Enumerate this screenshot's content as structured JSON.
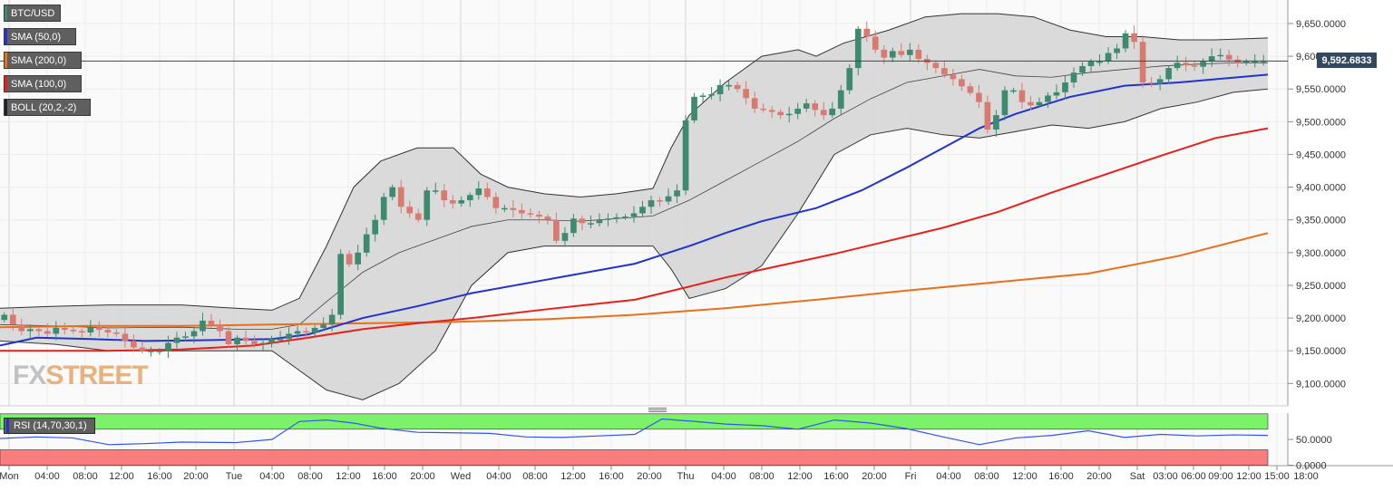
{
  "legend": {
    "pair": "BTC/USD",
    "sma50": "SMA (50,0)",
    "sma200": "SMA (200,0)",
    "sma100": "SMA (100,0)",
    "boll": "BOLL (20,2,-2)",
    "rsi": "RSI (14,70,30,1)"
  },
  "colors": {
    "bull": "#3d8a6e",
    "bear": "#d87a70",
    "sma50": "#2233cc",
    "sma100": "#e8201a",
    "sma200": "#e8701a",
    "boll_fill": "#d6d6d6",
    "rsi_line": "#3355ee",
    "rsi_over": "#7cf26a",
    "rsi_under": "#fa7d7d"
  },
  "current_price": "9,592.6833",
  "watermark": {
    "fx": "FX",
    "street": "STREET"
  },
  "chart_data": {
    "type": "candlestick",
    "x_labels": [
      "Mon",
      "04:00",
      "08:00",
      "12:00",
      "16:00",
      "20:00",
      "Tue",
      "04:00",
      "08:00",
      "12:00",
      "16:00",
      "20:00",
      "Wed",
      "04:00",
      "08:00",
      "12:00",
      "16:00",
      "20:00",
      "Thu",
      "04:00",
      "08:00",
      "12:00",
      "16:00",
      "20:00",
      "Fri",
      "04:00",
      "08:00",
      "12:00",
      "16:00",
      "20:00",
      "Sat",
      "03:00",
      "06:00",
      "09:00",
      "12:00",
      "15:00",
      "18:00"
    ],
    "y_ticks": [
      "9,650.0000",
      "9,600.0000",
      "9,550.0000",
      "9,500.0000",
      "9,450.0000",
      "9,400.0000",
      "9,350.0000",
      "9,300.0000",
      "9,250.0000",
      "9,200.0000",
      "9,150.0000",
      "9,100.0000"
    ],
    "ylim": [
      9070,
      9680
    ],
    "rsi_ticks": [
      "50.0000",
      "0.0000"
    ],
    "rsi_range": [
      0,
      100
    ],
    "close_key": [
      9205,
      9190,
      9180,
      9183,
      9180,
      9176,
      9185,
      9182,
      9180,
      9178,
      9186,
      9182,
      9178,
      9176,
      9165,
      9155,
      9150,
      9150,
      9150,
      9162,
      9170,
      9172,
      9180,
      9196,
      9190,
      9180,
      9160,
      9170,
      9165,
      9160,
      9162,
      9168,
      9168,
      9176,
      9180,
      9178,
      9185,
      9190,
      9205,
      9298,
      9282,
      9300,
      9328,
      9350,
      9385,
      9400,
      9370,
      9360,
      9350,
      9395,
      9395,
      9380,
      9375,
      9380,
      9388,
      9398,
      9385,
      9368,
      9368,
      9365,
      9360,
      9358,
      9355,
      9350,
      9318,
      9330,
      9352,
      9345,
      9345,
      9350,
      9352,
      9354,
      9355,
      9360,
      9370,
      9380,
      9378,
      9386,
      9395,
      9502,
      9538,
      9540,
      9542,
      9556,
      9556,
      9550,
      9536,
      9520,
      9518,
      9515,
      9510,
      9512,
      9520,
      9528,
      9518,
      9510,
      9520,
      9548,
      9582,
      9642,
      9630,
      9610,
      9598,
      9608,
      9602,
      9610,
      9596,
      9590,
      9582,
      9572,
      9565,
      9554,
      9544,
      9530,
      9488,
      9510,
      9548,
      9548,
      9530,
      9525,
      9530,
      9540,
      9545,
      9560,
      9575,
      9585,
      9592,
      9592,
      9605,
      9612,
      9635,
      9622,
      9560,
      9558,
      9565,
      9582,
      9590,
      9586,
      9584,
      9592,
      9600,
      9602,
      9595,
      9590,
      9592,
      9592,
      9593
    ],
    "sma50": [
      [
        0,
        9158
      ],
      [
        40,
        9170
      ],
      [
        100,
        9168
      ],
      [
        160,
        9165
      ],
      [
        220,
        9166
      ],
      [
        300,
        9168
      ],
      [
        340,
        9175
      ],
      [
        400,
        9200
      ],
      [
        460,
        9218
      ],
      [
        520,
        9238
      ],
      [
        600,
        9258
      ],
      [
        700,
        9283
      ],
      [
        760,
        9310
      ],
      [
        800,
        9330
      ],
      [
        840,
        9348
      ],
      [
        900,
        9368
      ],
      [
        950,
        9395
      ],
      [
        1000,
        9430
      ],
      [
        1040,
        9460
      ],
      [
        1080,
        9490
      ],
      [
        1120,
        9512
      ],
      [
        1180,
        9538
      ],
      [
        1240,
        9555
      ],
      [
        1300,
        9560
      ],
      [
        1398,
        9572
      ]
    ],
    "sma100": [
      [
        0,
        9150
      ],
      [
        60,
        9150
      ],
      [
        120,
        9150
      ],
      [
        200,
        9152
      ],
      [
        280,
        9158
      ],
      [
        340,
        9170
      ],
      [
        400,
        9183
      ],
      [
        460,
        9192
      ],
      [
        520,
        9200
      ],
      [
        600,
        9213
      ],
      [
        700,
        9228
      ],
      [
        760,
        9248
      ],
      [
        800,
        9262
      ],
      [
        860,
        9280
      ],
      [
        920,
        9298
      ],
      [
        980,
        9318
      ],
      [
        1040,
        9338
      ],
      [
        1100,
        9362
      ],
      [
        1160,
        9392
      ],
      [
        1220,
        9420
      ],
      [
        1280,
        9448
      ],
      [
        1340,
        9475
      ],
      [
        1398,
        9490
      ]
    ],
    "sma200": [
      [
        0,
        9186
      ],
      [
        100,
        9188
      ],
      [
        200,
        9188
      ],
      [
        300,
        9190
      ],
      [
        400,
        9192
      ],
      [
        500,
        9194
      ],
      [
        600,
        9198
      ],
      [
        700,
        9205
      ],
      [
        800,
        9215
      ],
      [
        900,
        9228
      ],
      [
        1000,
        9242
      ],
      [
        1100,
        9255
      ],
      [
        1200,
        9268
      ],
      [
        1300,
        9295
      ],
      [
        1398,
        9330
      ]
    ],
    "boll_upper": [
      [
        0,
        9215
      ],
      [
        60,
        9218
      ],
      [
        120,
        9220
      ],
      [
        200,
        9220
      ],
      [
        260,
        9215
      ],
      [
        300,
        9212
      ],
      [
        330,
        9230
      ],
      [
        360,
        9310
      ],
      [
        390,
        9400
      ],
      [
        420,
        9440
      ],
      [
        460,
        9460
      ],
      [
        500,
        9460
      ],
      [
        530,
        9420
      ],
      [
        560,
        9400
      ],
      [
        600,
        9390
      ],
      [
        640,
        9385
      ],
      [
        680,
        9390
      ],
      [
        720,
        9398
      ],
      [
        740,
        9460
      ],
      [
        760,
        9510
      ],
      [
        800,
        9560
      ],
      [
        840,
        9600
      ],
      [
        880,
        9610
      ],
      [
        900,
        9600
      ],
      [
        930,
        9620
      ],
      [
        980,
        9640
      ],
      [
        1020,
        9660
      ],
      [
        1060,
        9665
      ],
      [
        1100,
        9665
      ],
      [
        1140,
        9660
      ],
      [
        1180,
        9640
      ],
      [
        1220,
        9630
      ],
      [
        1260,
        9630
      ],
      [
        1300,
        9625
      ],
      [
        1340,
        9625
      ],
      [
        1398,
        9628
      ]
    ],
    "boll_mid": [
      [
        0,
        9190
      ],
      [
        60,
        9188
      ],
      [
        120,
        9185
      ],
      [
        200,
        9186
      ],
      [
        260,
        9183
      ],
      [
        300,
        9183
      ],
      [
        330,
        9190
      ],
      [
        360,
        9225
      ],
      [
        400,
        9270
      ],
      [
        440,
        9300
      ],
      [
        480,
        9320
      ],
      [
        520,
        9340
      ],
      [
        560,
        9350
      ],
      [
        600,
        9350
      ],
      [
        640,
        9348
      ],
      [
        680,
        9352
      ],
      [
        720,
        9356
      ],
      [
        760,
        9380
      ],
      [
        800,
        9410
      ],
      [
        840,
        9440
      ],
      [
        880,
        9470
      ],
      [
        920,
        9505
      ],
      [
        960,
        9535
      ],
      [
        1000,
        9560
      ],
      [
        1040,
        9570
      ],
      [
        1080,
        9580
      ],
      [
        1120,
        9570
      ],
      [
        1160,
        9568
      ],
      [
        1200,
        9575
      ],
      [
        1240,
        9580
      ],
      [
        1280,
        9585
      ],
      [
        1320,
        9588
      ],
      [
        1360,
        9590
      ],
      [
        1398,
        9590
      ]
    ],
    "boll_lower": [
      [
        0,
        9165
      ],
      [
        60,
        9160
      ],
      [
        120,
        9150
      ],
      [
        200,
        9150
      ],
      [
        260,
        9150
      ],
      [
        300,
        9150
      ],
      [
        330,
        9120
      ],
      [
        360,
        9090
      ],
      [
        400,
        9075
      ],
      [
        440,
        9100
      ],
      [
        480,
        9150
      ],
      [
        520,
        9250
      ],
      [
        560,
        9300
      ],
      [
        600,
        9310
      ],
      [
        640,
        9310
      ],
      [
        680,
        9310
      ],
      [
        720,
        9310
      ],
      [
        740,
        9275
      ],
      [
        760,
        9230
      ],
      [
        800,
        9245
      ],
      [
        840,
        9280
      ],
      [
        880,
        9360
      ],
      [
        920,
        9450
      ],
      [
        960,
        9480
      ],
      [
        1000,
        9490
      ],
      [
        1040,
        9480
      ],
      [
        1080,
        9475
      ],
      [
        1120,
        9485
      ],
      [
        1160,
        9495
      ],
      [
        1200,
        9490
      ],
      [
        1240,
        9500
      ],
      [
        1280,
        9520
      ],
      [
        1320,
        9530
      ],
      [
        1360,
        9545
      ],
      [
        1398,
        9550
      ]
    ],
    "rsi_line": [
      [
        0,
        52
      ],
      [
        40,
        55
      ],
      [
        80,
        53
      ],
      [
        120,
        40
      ],
      [
        160,
        42
      ],
      [
        200,
        45
      ],
      [
        260,
        44
      ],
      [
        300,
        50
      ],
      [
        330,
        85
      ],
      [
        360,
        88
      ],
      [
        390,
        82
      ],
      [
        420,
        72
      ],
      [
        460,
        64
      ],
      [
        500,
        63
      ],
      [
        540,
        62
      ],
      [
        580,
        55
      ],
      [
        620,
        54
      ],
      [
        660,
        57
      ],
      [
        700,
        60
      ],
      [
        730,
        90
      ],
      [
        760,
        86
      ],
      [
        800,
        80
      ],
      [
        840,
        77
      ],
      [
        880,
        70
      ],
      [
        920,
        88
      ],
      [
        960,
        82
      ],
      [
        1000,
        71
      ],
      [
        1040,
        55
      ],
      [
        1080,
        40
      ],
      [
        1120,
        53
      ],
      [
        1160,
        58
      ],
      [
        1200,
        67
      ],
      [
        1240,
        54
      ],
      [
        1280,
        60
      ],
      [
        1320,
        57
      ],
      [
        1360,
        59
      ],
      [
        1398,
        58
      ]
    ]
  }
}
